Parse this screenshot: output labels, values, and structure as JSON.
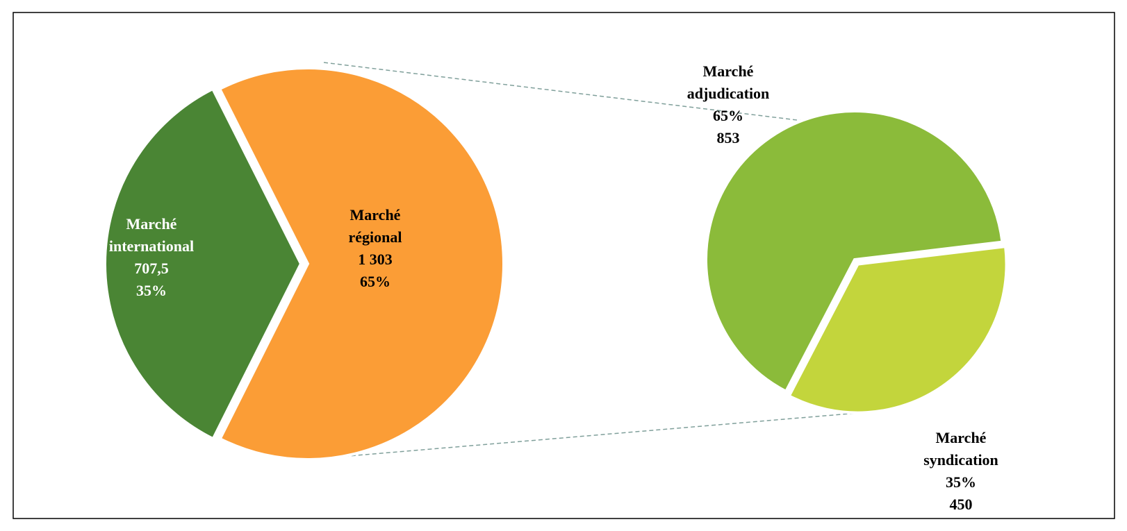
{
  "chart_data": [
    {
      "type": "pie",
      "categories": [
        "Marché international",
        "Marché régional"
      ],
      "values": [
        707.5,
        1303
      ],
      "value_labels": [
        "707,5",
        "1 303"
      ],
      "percents": [
        35,
        65
      ],
      "percent_labels": [
        "35%",
        "65%"
      ],
      "colors": [
        "#4a8534",
        "#fb9d36"
      ]
    },
    {
      "type": "pie",
      "categories": [
        "Marché adjudication",
        "Marché syndication"
      ],
      "values": [
        853,
        450
      ],
      "percents": [
        65,
        35
      ],
      "percent_labels": [
        "65%",
        "35%"
      ],
      "colors": [
        "#8bbb3a",
        "#c3d53c"
      ]
    }
  ]
}
